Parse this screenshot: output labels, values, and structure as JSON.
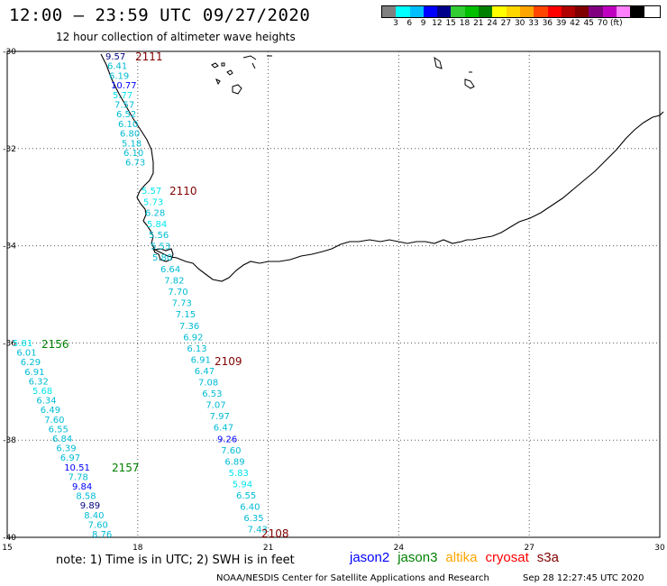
{
  "header": {
    "title": "12:00 – 23:59 UTC 09/27/2020",
    "subtitle": "12 hour collection of altimeter wave heights"
  },
  "color_scale": {
    "colors": [
      "#808080",
      "#00ffff",
      "#00bfff",
      "#0000ff",
      "#00008b",
      "#32cd32",
      "#00c000",
      "#008000",
      "#ffff00",
      "#ffd700",
      "#ffa500",
      "#ff4500",
      "#ff0000",
      "#b00000",
      "#800000",
      "#800080",
      "#c000c0",
      "#ff80ff",
      "#000000"
    ],
    "ticks": [
      "3",
      "6",
      "9",
      "12",
      "15",
      "18",
      "21",
      "24",
      "27",
      "30",
      "33",
      "36",
      "39",
      "42",
      "45",
      "70"
    ],
    "unit": "(ft)"
  },
  "map": {
    "lat_labels": [
      "-30",
      "-32",
      "-34",
      "-36",
      "-38",
      "-40"
    ],
    "lon_labels": [
      "15",
      "18",
      "21",
      "24",
      "27",
      "30"
    ],
    "lat_values": [
      -30,
      -32,
      -34,
      -36,
      -38,
      -40
    ],
    "lon_values": [
      15,
      18,
      21,
      24,
      27,
      30
    ]
  },
  "passes": [
    {
      "id": "2111",
      "color": "#800000"
    },
    {
      "id": "2110",
      "color": "#800000"
    },
    {
      "id": "2109",
      "color": "#800000"
    },
    {
      "id": "2108",
      "color": "#800000"
    },
    {
      "id": "2156",
      "color": "#008000"
    },
    {
      "id": "2157",
      "color": "#008000"
    }
  ],
  "tracks": [
    {
      "values": [
        "9.57",
        "6.41",
        "6.19",
        "10.77",
        "5.77",
        "7.57",
        "6.52",
        "6.10",
        "6.80",
        "5.18",
        "6.10",
        "6.73"
      ],
      "colors": [
        "#000080",
        "#00bcd4",
        "#00bcd4",
        "#0000ff",
        "#00e5ee",
        "#00bcd4",
        "#00bcd4",
        "#00bcd4",
        "#00bcd4",
        "#00bcd4",
        "#00bcd4",
        "#00bcd4"
      ]
    },
    {
      "values": [
        "5.57",
        "5.73",
        "6.28",
        "5.84",
        "5.56",
        "5.53",
        "5.80"
      ],
      "colors": [
        "#00e5ee",
        "#00e5ee",
        "#00bcd4",
        "#00e5ee",
        "#00bcd4",
        "#00bcd4",
        "#00bcd4"
      ]
    },
    {
      "values": [
        "6.64",
        "7.82",
        "7.70",
        "7.73",
        "7.15",
        "7.36",
        "6.92",
        "6.13",
        "6.91",
        "6.47",
        "7.08",
        "6.53",
        "7.07",
        "7.97",
        "6.47",
        "9.26",
        "7.60",
        "6.89",
        "5.83",
        "5.94",
        "6.55",
        "6.40",
        "6.35",
        "7.43"
      ],
      "colors": [
        "#00bcd4",
        "#00bcd4",
        "#00bcd4",
        "#00bcd4",
        "#00bcd4",
        "#00bcd4",
        "#00bcd4",
        "#00bcd4",
        "#00bcd4",
        "#00bcd4",
        "#00bcd4",
        "#00bcd4",
        "#00bcd4",
        "#00bcd4",
        "#00bcd4",
        "#0000ff",
        "#00bcd4",
        "#00bcd4",
        "#00e5ee",
        "#00e5ee",
        "#00bcd4",
        "#00bcd4",
        "#00bcd4",
        "#00bcd4"
      ]
    },
    {
      "values": [
        "5.81",
        "6.01",
        "6.29",
        "6.91",
        "6.32",
        "5.68",
        "6.34",
        "6.49",
        "7.60",
        "6.55",
        "6.84",
        "6.39",
        "6.97",
        "10.51",
        "7.78",
        "9.84",
        "8.58",
        "9.89",
        "8.40",
        "7.60",
        "8.76"
      ],
      "colors": [
        "#00e5ee",
        "#00bcd4",
        "#00bcd4",
        "#00bcd4",
        "#00bcd4",
        "#00e5ee",
        "#00bcd4",
        "#00bcd4",
        "#00bcd4",
        "#00bcd4",
        "#00bcd4",
        "#00bcd4",
        "#00bcd4",
        "#0000ff",
        "#00bcd4",
        "#0000ff",
        "#00bcd4",
        "#000080",
        "#00bcd4",
        "#00bcd4",
        "#00bcd4"
      ]
    }
  ],
  "footer": {
    "note": "note:  1) Time is in UTC;  2) SWH is in feet",
    "satellites": [
      {
        "name": "jason2",
        "color": "#0000ff"
      },
      {
        "name": "jason3",
        "color": "#008000"
      },
      {
        "name": "altika",
        "color": "#ffa500"
      },
      {
        "name": "cryosat",
        "color": "#ff0000"
      },
      {
        "name": "s3a",
        "color": "#800000"
      }
    ],
    "credit": "NOAA/NESDIS Center for Satellite Applications and Research",
    "timestamp": "Sep 28 12:27:45 UTC 2020"
  }
}
